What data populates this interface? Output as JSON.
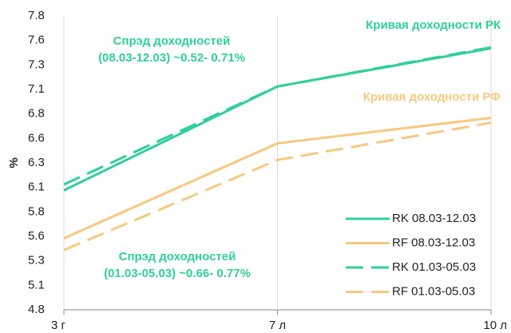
{
  "chart_data": {
    "type": "line",
    "y_label": "%",
    "categories": [
      "3 г",
      "7 л",
      "10 л"
    ],
    "ylim": [
      4.8,
      7.8
    ],
    "yticks": [
      4.8,
      {
        "value": 5.05,
        "label": "5.1"
      },
      5.3,
      {
        "value": 5.55,
        "label": "5.6"
      },
      5.8,
      {
        "value": 6.05,
        "label": "6.1"
      },
      6.3,
      {
        "value": 6.55,
        "label": "6.6"
      },
      6.8,
      {
        "value": 7.05,
        "label": "7.1"
      },
      7.3,
      {
        "value": 7.55,
        "label": "7.6"
      },
      7.8
    ],
    "grid": "x",
    "legend": "lower right",
    "series": [
      {
        "name": "RK 08.03-12.03",
        "color": "#2fcf9c",
        "dash": false,
        "values": [
          6.02,
          7.08,
          7.47
        ]
      },
      {
        "name": "RF 08.03-12.03",
        "color": "#f7c97e",
        "dash": false,
        "values": [
          5.53,
          6.5,
          6.76
        ]
      },
      {
        "name": "RK 01.03-05.03",
        "color": "#2fcf9c",
        "dash": true,
        "values": [
          6.08,
          7.08,
          7.48
        ]
      },
      {
        "name": "RF 01.03-05.03",
        "color": "#f7c97e",
        "dash": true,
        "values": [
          5.41,
          6.33,
          6.71
        ]
      }
    ],
    "annotations": [
      {
        "lines": [
          "Кривая доходности РК"
        ],
        "color": "#2fcf9c"
      },
      {
        "lines": [
          "Кривая доходности РФ"
        ],
        "color": "#f7c97e"
      },
      {
        "lines": [
          "Спрэд доходностей",
          "(08.03-12.03) ~0.52- 0.71%"
        ],
        "color": "#2fcf9c"
      },
      {
        "lines": [
          "Спрэд доходностей",
          "(01.03-05.03) ~0.66- 0.77%"
        ],
        "color": "#2fcf9c"
      }
    ]
  }
}
